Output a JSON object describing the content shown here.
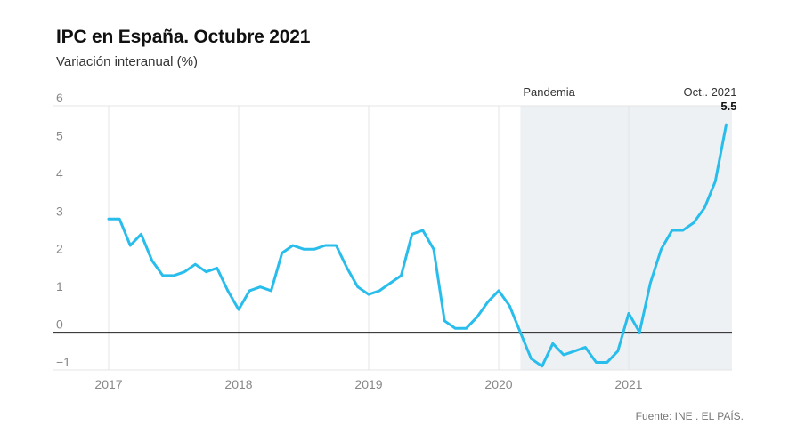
{
  "title": "IPC en España. Octubre 2021",
  "subtitle": "Variación interanual (%)",
  "source": "Fuente: INE . EL PAÍS.",
  "colors": {
    "line": "#29bdec",
    "shade": "#eef1f4",
    "grid": "#e4e4e4",
    "zero": "#222222"
  },
  "chart_data": {
    "type": "line",
    "title": "IPC en España. Octubre 2021",
    "ylabel": "Variación interanual (%)",
    "ylim": [
      -1,
      6
    ],
    "yticks": [
      -1,
      0,
      1,
      2,
      3,
      4,
      5,
      6
    ],
    "ytick_labels": [
      "−1",
      "0",
      "1",
      "2",
      "3",
      "4",
      "5",
      "6"
    ],
    "xticks": [
      2017,
      2018,
      2019,
      2020,
      2021
    ],
    "xtick_labels": [
      "2017",
      "2018",
      "2019",
      "2020",
      "2021"
    ],
    "grid": "vertical at years, horizontal at y=0",
    "shaded_region": {
      "label": "Pandemia",
      "from": "2020-03",
      "to": "2021-10"
    },
    "last_point_annotation": {
      "label": "Oct.. 2021",
      "value_label": "5.5"
    },
    "series": [
      {
        "x": [
          "2017-01",
          "2017-02",
          "2017-03",
          "2017-04",
          "2017-05",
          "2017-06",
          "2017-07",
          "2017-08",
          "2017-09",
          "2017-10",
          "2017-11",
          "2017-12",
          "2018-01",
          "2018-02",
          "2018-03",
          "2018-04",
          "2018-05",
          "2018-06",
          "2018-07",
          "2018-08",
          "2018-09",
          "2018-10",
          "2018-11",
          "2018-12",
          "2019-01",
          "2019-02",
          "2019-03",
          "2019-04",
          "2019-05",
          "2019-06",
          "2019-07",
          "2019-08",
          "2019-09",
          "2019-10",
          "2019-11",
          "2019-12",
          "2020-01",
          "2020-02",
          "2020-03",
          "2020-04",
          "2020-05",
          "2020-06",
          "2020-07",
          "2020-08",
          "2020-09",
          "2020-10",
          "2020-11",
          "2020-12",
          "2021-01",
          "2021-02",
          "2021-03",
          "2021-04",
          "2021-05",
          "2021-06",
          "2021-07",
          "2021-08",
          "2021-09",
          "2021-10"
        ],
        "values": [
          3.0,
          3.0,
          2.3,
          2.6,
          1.9,
          1.5,
          1.5,
          1.6,
          1.8,
          1.6,
          1.7,
          1.1,
          0.6,
          1.1,
          1.2,
          1.1,
          2.1,
          2.3,
          2.2,
          2.2,
          2.3,
          2.3,
          1.7,
          1.2,
          1.0,
          1.1,
          1.3,
          1.5,
          2.6,
          2.7,
          2.2,
          0.3,
          0.1,
          0.1,
          0.4,
          0.8,
          1.1,
          0.7,
          0.0,
          -0.7,
          -0.9,
          -0.3,
          -0.6,
          -0.5,
          -0.4,
          -0.8,
          -0.8,
          -0.5,
          0.5,
          0.0,
          1.3,
          2.2,
          2.7,
          2.7,
          2.9,
          3.3,
          4.0,
          5.5
        ]
      }
    ]
  }
}
